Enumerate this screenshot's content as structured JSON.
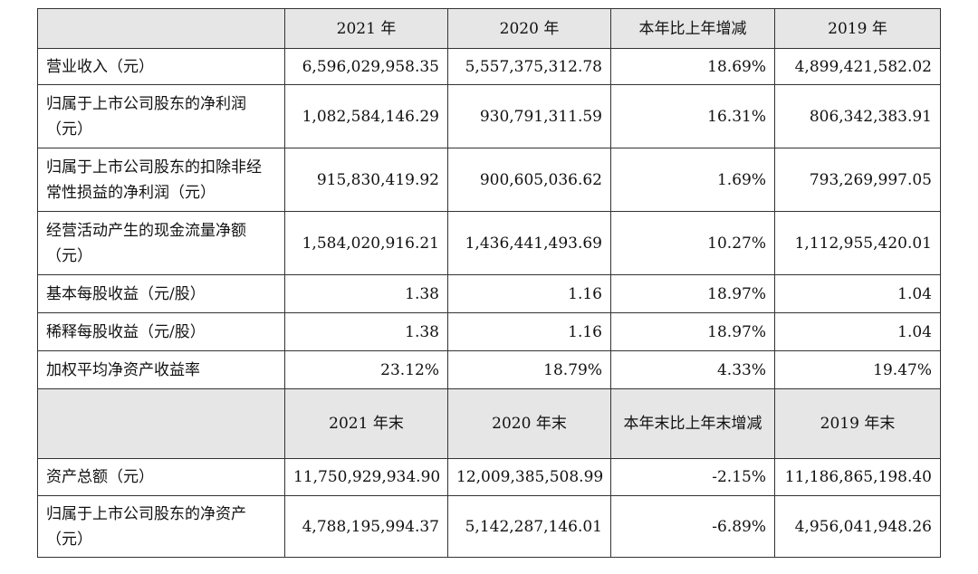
{
  "table1": {
    "headers": [
      "",
      "2021 年",
      "2020 年",
      "本年比上年增减",
      "2019 年"
    ],
    "rows": [
      {
        "label": "营业收入（元）",
        "values": [
          "6,596,029,958.35",
          "5,557,375,312.78",
          "18.69%",
          "4,899,421,582.02"
        ]
      },
      {
        "label": "归属于上市公司股东的净利润（元）",
        "values": [
          "1,082,584,146.29",
          "930,791,311.59",
          "16.31%",
          "806,342,383.91"
        ]
      },
      {
        "label": "归属于上市公司股东的扣除非经常性损益的净利润（元）",
        "values": [
          "915,830,419.92",
          "900,605,036.62",
          "1.69%",
          "793,269,997.05"
        ]
      },
      {
        "label": "经营活动产生的现金流量净额（元）",
        "values": [
          "1,584,020,916.21",
          "1,436,441,493.69",
          "10.27%",
          "1,112,955,420.01"
        ]
      },
      {
        "label": "基本每股收益（元/股）",
        "values": [
          "1.38",
          "1.16",
          "18.97%",
          "1.04"
        ]
      },
      {
        "label": "稀释每股收益（元/股）",
        "values": [
          "1.38",
          "1.16",
          "18.97%",
          "1.04"
        ]
      },
      {
        "label": "加权平均净资产收益率",
        "values": [
          "23.12%",
          "18.79%",
          "4.33%",
          "19.47%"
        ]
      }
    ]
  },
  "table2": {
    "headers": [
      "",
      "2021 年末",
      "2020 年末",
      "本年末比上年末增减",
      "2019 年末"
    ],
    "rows": [
      {
        "label": "资产总额（元）",
        "values": [
          "11,750,929,934.90",
          "12,009,385,508.99",
          "-2.15%",
          "11,186,865,198.40"
        ]
      },
      {
        "label": "归属于上市公司股东的净资产（元）",
        "values": [
          "4,788,195,994.37",
          "5,142,287,146.01",
          "-6.89%",
          "4,956,041,948.26"
        ]
      }
    ]
  }
}
